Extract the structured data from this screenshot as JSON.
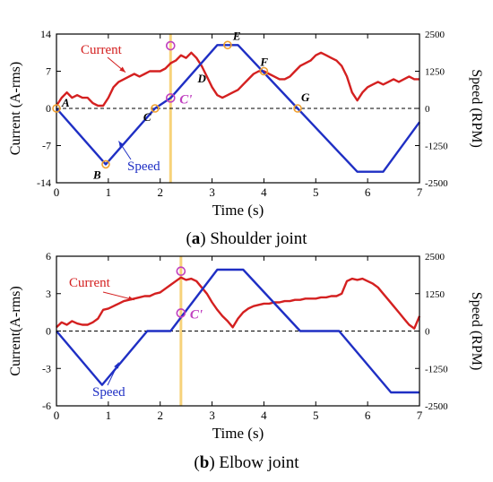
{
  "colors": {
    "current": "#d42020",
    "speed": "#1f2fc4",
    "marker_orange": "#f0a030",
    "marker_magenta": "#c040c0",
    "vline": "#f7d27a",
    "axis": "#000000"
  },
  "chart_data": [
    {
      "type": "line",
      "caption_letter": "a",
      "caption_text": " Shoulder joint",
      "xlabel": "Time (s)",
      "ylabel": "Current (A-rms)",
      "y2label": "Speed (RPM)",
      "xlim": [
        0,
        7
      ],
      "ylim": [
        -14,
        14
      ],
      "y2lim": [
        -2500,
        2500
      ],
      "xticks": [
        "0",
        "1",
        "2",
        "3",
        "4",
        "5",
        "6",
        "7"
      ],
      "yticks": [
        "-14",
        "-7",
        "0",
        "7",
        "14"
      ],
      "y2ticks": [
        "-2500",
        "-1250",
        "0",
        "1250",
        "2500"
      ],
      "grid": false,
      "zero_line": "dashed",
      "series": [
        {
          "name": "Current",
          "axis": "left",
          "x": [
            0,
            0.1,
            0.2,
            0.3,
            0.4,
            0.5,
            0.6,
            0.7,
            0.8,
            0.9,
            1.0,
            1.1,
            1.2,
            1.3,
            1.4,
            1.5,
            1.6,
            1.7,
            1.8,
            1.9,
            2.0,
            2.1,
            2.2,
            2.3,
            2.4,
            2.5,
            2.6,
            2.7,
            2.8,
            2.9,
            3.0,
            3.1,
            3.2,
            3.3,
            3.4,
            3.5,
            3.6,
            3.7,
            3.8,
            3.9,
            4.0,
            4.1,
            4.2,
            4.3,
            4.4,
            4.5,
            4.6,
            4.7,
            4.8,
            4.9,
            5.0,
            5.1,
            5.2,
            5.3,
            5.4,
            5.5,
            5.6,
            5.7,
            5.8,
            5.9,
            6.0,
            6.1,
            6.2,
            6.3,
            6.4,
            6.5,
            6.6,
            6.7,
            6.8,
            6.9,
            7.0
          ],
          "values": [
            0.5,
            2.0,
            3.0,
            2.0,
            2.5,
            2.0,
            2.0,
            1.0,
            0.5,
            0.5,
            2.0,
            4.0,
            5.0,
            5.5,
            6.0,
            6.5,
            6.0,
            6.5,
            7.0,
            7.0,
            7.0,
            7.5,
            8.5,
            9.0,
            10.0,
            9.5,
            10.5,
            9.5,
            8.0,
            6.0,
            4.0,
            2.5,
            2.0,
            2.5,
            3.0,
            3.5,
            4.5,
            5.5,
            6.5,
            7.0,
            7.0,
            6.5,
            6.0,
            5.5,
            5.5,
            6.0,
            7.0,
            8.0,
            8.5,
            9.0,
            10.0,
            10.5,
            10.0,
            9.5,
            9.0,
            8.0,
            6.0,
            3.0,
            1.5,
            3.0,
            4.0,
            4.5,
            5.0,
            4.5,
            5.0,
            5.5,
            5.0,
            5.5,
            6.0,
            5.5,
            5.5
          ]
        },
        {
          "name": "Speed",
          "axis": "right",
          "x": [
            0,
            0.95,
            1.9,
            2.2,
            3.1,
            3.5,
            4.65,
            5.8,
            6.3,
            7.0
          ],
          "values": [
            0,
            -1880,
            0,
            350,
            2130,
            2130,
            0,
            -2130,
            -2130,
            -460
          ]
        }
      ],
      "legend": [
        {
          "text": "Current",
          "series": "Current",
          "arrow_to": [
            1.33,
            6.8
          ]
        },
        {
          "text": "Speed",
          "series": "Speed",
          "arrow_to": [
            1.2,
            -1100
          ]
        }
      ],
      "points": [
        {
          "label": "A",
          "x": 0.0,
          "speed": 0,
          "marker": "orange"
        },
        {
          "label": "B",
          "x": 0.95,
          "speed": -1880,
          "marker": "orange"
        },
        {
          "label": "C",
          "x": 1.9,
          "speed": 0,
          "marker": "orange"
        },
        {
          "label": "C'",
          "x": 2.2,
          "speed": 350,
          "marker": "magenta"
        },
        {
          "label": "D",
          "x": 2.55,
          "speed": 1050,
          "marker": "none"
        },
        {
          "label": "E",
          "x": 3.3,
          "speed": 2130,
          "marker": "orange"
        },
        {
          "label": "F",
          "x": 4.0,
          "speed": 1250,
          "marker": "orange"
        },
        {
          "label": "G",
          "x": 4.65,
          "speed": 0,
          "marker": "orange"
        }
      ],
      "peak_marker": {
        "x": 2.2,
        "current": 11.8
      },
      "vertical_line_x": 2.2
    },
    {
      "type": "line",
      "caption_letter": "b",
      "caption_text": " Elbow joint",
      "xlabel": "Time (s)",
      "ylabel": "Current(A-rms)",
      "y2label": "Speed (RPM)",
      "xlim": [
        0,
        7
      ],
      "ylim": [
        -6,
        6
      ],
      "y2lim": [
        -2500,
        2500
      ],
      "xticks": [
        "0",
        "1",
        "2",
        "3",
        "4",
        "5",
        "6",
        "7"
      ],
      "yticks": [
        "-6",
        "-3",
        "0",
        "3",
        "6"
      ],
      "y2ticks": [
        "-2500",
        "-1250",
        "0",
        "1250",
        "2500"
      ],
      "grid": false,
      "zero_line": "dashed",
      "series": [
        {
          "name": "Current",
          "axis": "left",
          "x": [
            0,
            0.1,
            0.2,
            0.3,
            0.4,
            0.5,
            0.6,
            0.7,
            0.8,
            0.9,
            1.0,
            1.1,
            1.2,
            1.3,
            1.4,
            1.5,
            1.6,
            1.7,
            1.8,
            1.9,
            2.0,
            2.1,
            2.2,
            2.3,
            2.4,
            2.5,
            2.6,
            2.7,
            2.8,
            2.9,
            3.0,
            3.1,
            3.2,
            3.3,
            3.4,
            3.5,
            3.6,
            3.7,
            3.8,
            3.9,
            4.0,
            4.1,
            4.2,
            4.3,
            4.4,
            4.5,
            4.6,
            4.7,
            4.8,
            4.9,
            5.0,
            5.1,
            5.2,
            5.3,
            5.4,
            5.5,
            5.6,
            5.7,
            5.8,
            5.9,
            6.0,
            6.1,
            6.2,
            6.3,
            6.4,
            6.5,
            6.6,
            6.7,
            6.8,
            6.9,
            7.0
          ],
          "values": [
            0.3,
            0.7,
            0.5,
            0.8,
            0.6,
            0.5,
            0.5,
            0.7,
            1.0,
            1.7,
            1.8,
            2.0,
            2.2,
            2.4,
            2.5,
            2.6,
            2.7,
            2.8,
            2.8,
            3.0,
            3.1,
            3.4,
            3.7,
            4.0,
            4.3,
            4.1,
            4.2,
            4.0,
            3.5,
            3.0,
            2.3,
            1.7,
            1.2,
            0.8,
            0.3,
            1.0,
            1.5,
            1.8,
            2.0,
            2.1,
            2.2,
            2.2,
            2.3,
            2.3,
            2.4,
            2.4,
            2.5,
            2.5,
            2.6,
            2.6,
            2.6,
            2.7,
            2.7,
            2.8,
            2.8,
            3.0,
            4.0,
            4.2,
            4.1,
            4.2,
            4.0,
            3.8,
            3.5,
            3.0,
            2.5,
            2.0,
            1.5,
            1.0,
            0.5,
            0.2,
            1.2
          ]
        },
        {
          "name": "Speed",
          "axis": "right",
          "x": [
            0,
            0.88,
            1.75,
            2.2,
            3.1,
            3.6,
            4.7,
            5.45,
            6.45,
            7.0
          ],
          "values": [
            0,
            -1800,
            0,
            0,
            2050,
            2050,
            0,
            0,
            -2050,
            -2050
          ]
        }
      ],
      "legend": [
        {
          "text": "Current",
          "series": "Current",
          "arrow_to": [
            1.5,
            2.5
          ]
        },
        {
          "text": "Speed",
          "series": "Speed",
          "arrow_to": [
            1.2,
            -1050
          ]
        }
      ],
      "points": [
        {
          "label": "C'",
          "x": 2.4,
          "speed": 600,
          "marker": "magenta"
        }
      ],
      "peak_marker": {
        "x": 2.4,
        "current": 4.8
      },
      "vertical_line_x": 2.4
    }
  ]
}
